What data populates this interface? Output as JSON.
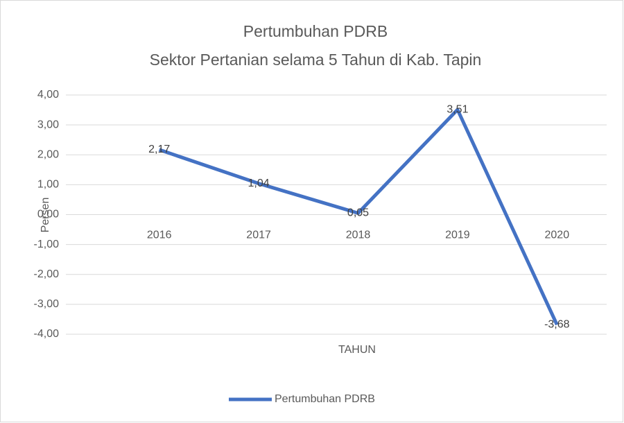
{
  "chart_data": {
    "type": "line",
    "title": "Pertumbuhan PDRB",
    "subtitle": "Sektor Pertanian selama 5 Tahun di Kab. Tapin",
    "x_label": "TAHUN",
    "y_label": "Persen",
    "categories": [
      "2016",
      "2017",
      "2018",
      "2019",
      "2020"
    ],
    "series": [
      {
        "name": "Pertumbuhan PDRB",
        "color": "#4472c4",
        "values": [
          2.17,
          1.04,
          0.05,
          3.51,
          -3.68
        ],
        "value_labels": [
          "2,17",
          "1,04",
          "0,05",
          "3,51",
          "-3,68"
        ]
      }
    ],
    "ylim": [
      -4,
      4
    ],
    "yticks": [
      {
        "value": 4,
        "label": "4,00"
      },
      {
        "value": 3,
        "label": "3,00"
      },
      {
        "value": 2,
        "label": "2,00"
      },
      {
        "value": 1,
        "label": "1,00"
      },
      {
        "value": 0,
        "label": "0,00"
      },
      {
        "value": -1,
        "label": "-1,00"
      },
      {
        "value": -2,
        "label": "-2,00"
      },
      {
        "value": -3,
        "label": "-3,00"
      },
      {
        "value": -4,
        "label": "-4,00"
      }
    ],
    "grid": true,
    "legend": "bottom"
  }
}
